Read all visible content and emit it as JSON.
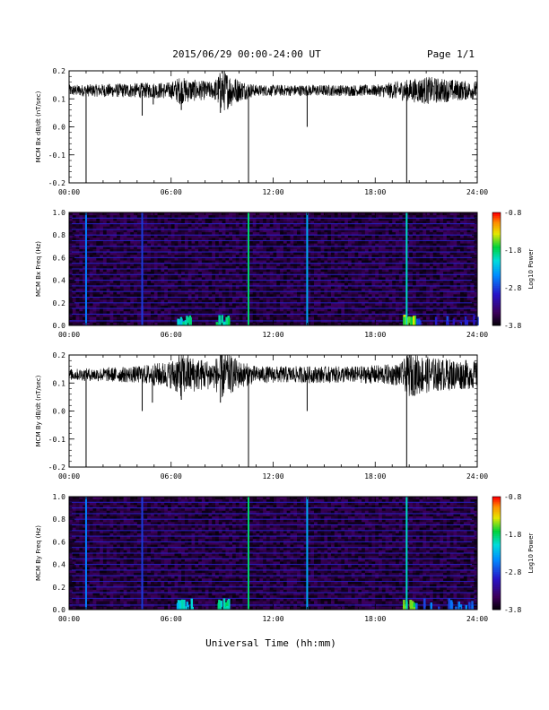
{
  "header": {
    "date_range": "2015/06/29  00:00-24:00 UT",
    "page": "Page 1/1"
  },
  "xlabel": "Universal Time (hh:mm)",
  "chart_data": [
    {
      "type": "line",
      "ylabel": "MCM Bx dB/dt (nT/sec)",
      "xlim": [
        0,
        24
      ],
      "ylim": [
        -0.2,
        0.2
      ],
      "x_ticks": [
        "00:00",
        "06:00",
        "12:00",
        "18:00",
        "24:00"
      ],
      "y_ticks": [
        "0.2",
        "0.1",
        "0.0",
        "-0.1",
        "-0.2"
      ],
      "series": [
        {
          "baseline": 0.13,
          "noise_amplitude": [
            [
              0,
              0.02
            ],
            [
              6,
              0.03
            ],
            [
              6.5,
              0.05
            ],
            [
              7.2,
              0.04
            ],
            [
              8.5,
              0.03
            ],
            [
              9,
              0.08
            ],
            [
              10,
              0.04
            ],
            [
              11,
              0.02
            ],
            [
              18,
              0.02
            ],
            [
              20,
              0.04
            ],
            [
              21,
              0.05
            ],
            [
              24,
              0.03
            ]
          ],
          "spikes": [
            {
              "t": 1.0,
              "y": -0.2
            },
            {
              "t": 4.3,
              "y": 0.04
            },
            {
              "t": 4.95,
              "y": 0.08
            },
            {
              "t": 6.6,
              "y": 0.06
            },
            {
              "t": 8.9,
              "y": 0.05
            },
            {
              "t": 10.55,
              "y": -0.2
            },
            {
              "t": 14.0,
              "y": 0.0
            },
            {
              "t": 19.85,
              "y": -0.2
            }
          ]
        }
      ]
    },
    {
      "type": "heatmap",
      "ylabel": "MCM Bx Freq (Hz)",
      "xlim": [
        0,
        24
      ],
      "ylim": [
        0.0,
        1.0
      ],
      "x_ticks": [
        "00:00",
        "06:00",
        "12:00",
        "18:00",
        "24:00"
      ],
      "y_ticks": [
        "1.0",
        "0.8",
        "0.6",
        "0.4",
        "0.2",
        "0.0"
      ],
      "colorbar": {
        "label": "Log10 Power",
        "min": -3.8,
        "max": -0.8,
        "ticks": [
          "-0.8",
          "-1.8",
          "-2.8",
          "-3.8"
        ]
      },
      "harmonic_lines_hz": [
        0.04,
        0.1,
        0.15,
        0.2,
        0.25,
        0.3,
        0.35,
        0.4,
        0.45,
        0.5,
        0.55,
        0.6,
        0.65,
        0.7,
        0.75,
        0.8,
        0.85,
        0.9,
        0.95,
        1.0
      ],
      "vertical_events": [
        {
          "t": 1.0,
          "power": -2.5
        },
        {
          "t": 4.3,
          "power": -2.8
        },
        {
          "t": 10.55,
          "power": -1.8
        },
        {
          "t": 14.0,
          "power": -2.3
        },
        {
          "t": 19.85,
          "power": -2.0
        }
      ],
      "low_freq_bursts": [
        {
          "t0": 6.3,
          "t1": 7.2,
          "power": -2.0
        },
        {
          "t0": 8.6,
          "t1": 9.4,
          "power": -1.9
        },
        {
          "t0": 19.6,
          "t1": 20.3,
          "power": -1.5
        },
        {
          "t0": 20.3,
          "t1": 24.0,
          "power": -2.8
        }
      ]
    },
    {
      "type": "line",
      "ylabel": "MCM By dB/dt (nT/sec)",
      "xlim": [
        0,
        24
      ],
      "ylim": [
        -0.2,
        0.2
      ],
      "x_ticks": [
        "00:00",
        "06:00",
        "12:00",
        "18:00",
        "24:00"
      ],
      "y_ticks": [
        "0.2",
        "0.1",
        "0.0",
        "-0.1",
        "-0.2"
      ],
      "series": [
        {
          "baseline": 0.13,
          "noise_amplitude": [
            [
              0,
              0.02
            ],
            [
              4,
              0.03
            ],
            [
              6,
              0.05
            ],
            [
              6.5,
              0.08
            ],
            [
              7.5,
              0.06
            ],
            [
              8.5,
              0.05
            ],
            [
              9,
              0.09
            ],
            [
              10,
              0.05
            ],
            [
              11,
              0.03
            ],
            [
              14,
              0.03
            ],
            [
              17,
              0.03
            ],
            [
              19.5,
              0.04
            ],
            [
              20,
              0.08
            ],
            [
              21.5,
              0.06
            ],
            [
              24,
              0.05
            ]
          ],
          "spikes": [
            {
              "t": 1.0,
              "y": -0.2
            },
            {
              "t": 4.3,
              "y": 0.0
            },
            {
              "t": 4.9,
              "y": 0.03
            },
            {
              "t": 6.6,
              "y": 0.04
            },
            {
              "t": 8.9,
              "y": 0.03
            },
            {
              "t": 10.55,
              "y": -0.2
            },
            {
              "t": 14.0,
              "y": 0.0
            },
            {
              "t": 19.85,
              "y": -0.2
            }
          ]
        }
      ]
    },
    {
      "type": "heatmap",
      "ylabel": "MCM By Freq (Hz)",
      "xlim": [
        0,
        24
      ],
      "ylim": [
        0.0,
        1.0
      ],
      "x_ticks": [
        "00:00",
        "06:00",
        "12:00",
        "18:00",
        "24:00"
      ],
      "y_ticks": [
        "1.0",
        "0.8",
        "0.6",
        "0.4",
        "0.2",
        "0.0"
      ],
      "colorbar": {
        "label": "Log10 Power",
        "min": -3.8,
        "max": -0.8,
        "ticks": [
          "-0.8",
          "-1.8",
          "-2.8",
          "-3.8"
        ]
      },
      "harmonic_lines_hz": [
        0.04,
        0.1,
        0.15,
        0.2,
        0.25,
        0.3,
        0.35,
        0.4,
        0.45,
        0.5,
        0.55,
        0.6,
        0.65,
        0.7,
        0.75,
        0.8,
        0.85,
        0.9,
        0.95,
        1.0
      ],
      "vertical_events": [
        {
          "t": 1.0,
          "power": -2.5
        },
        {
          "t": 4.3,
          "power": -2.8
        },
        {
          "t": 10.55,
          "power": -1.8
        },
        {
          "t": 14.0,
          "power": -2.3
        },
        {
          "t": 19.85,
          "power": -2.0
        }
      ],
      "low_freq_bursts": [
        {
          "t0": 6.3,
          "t1": 7.2,
          "power": -2.1
        },
        {
          "t0": 8.6,
          "t1": 9.4,
          "power": -1.9
        },
        {
          "t0": 19.6,
          "t1": 20.3,
          "power": -1.6
        },
        {
          "t0": 20.3,
          "t1": 24.0,
          "power": -2.6
        }
      ]
    }
  ]
}
